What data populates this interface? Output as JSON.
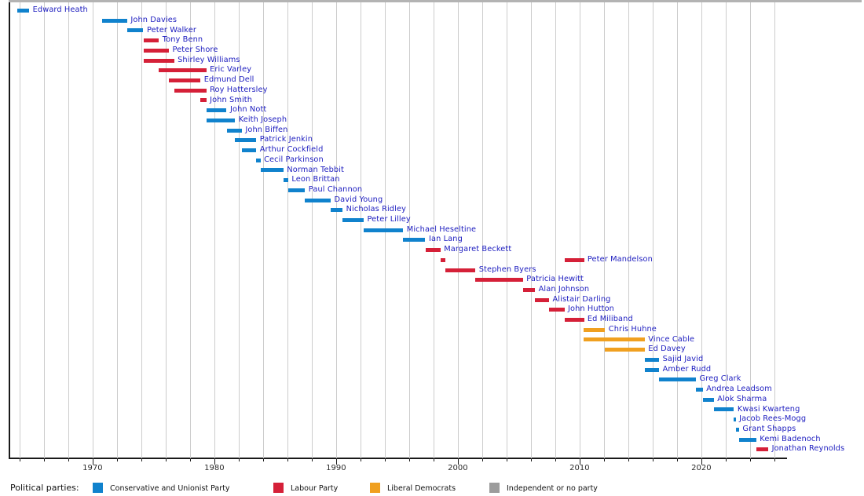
{
  "chart_data": {
    "type": "timeline",
    "title": "",
    "x_axis": {
      "range_start": 1963.2,
      "range_end": 2027.0,
      "minor_tick_step": 2,
      "minor_tick_start": 1964,
      "minor_tick_end": 2026,
      "decade_ticks": [
        1970,
        1980,
        1990,
        2000,
        2010,
        2020
      ],
      "decade_tick_labels": [
        "1970",
        "1980",
        "1990",
        "2000",
        "2010",
        "2020"
      ]
    },
    "colors": {
      "name_label": "#2020c0",
      "axis": "#1a1a1a",
      "gridline": "#cccccc"
    },
    "legend": {
      "title": "Political parties:",
      "items": [
        {
          "id": "con",
          "label": "Conservative and Unionist Party",
          "color": "#1082cd"
        },
        {
          "id": "lab",
          "label": "Labour Party",
          "color": "#d52038"
        },
        {
          "id": "ld",
          "label": "Liberal Democrats",
          "color": "#f0a020"
        },
        {
          "id": "ind",
          "label": "Independent or no party",
          "color": "#9c9c9c"
        }
      ]
    },
    "people": [
      {
        "name": "Edward Heath",
        "party": "con",
        "terms": [
          [
            1963.8,
            1964.79
          ]
        ]
      },
      {
        "name": "John Davies",
        "party": "con",
        "terms": [
          [
            1970.79,
            1972.84
          ]
        ]
      },
      {
        "name": "Peter Walker",
        "party": "con",
        "terms": [
          [
            1972.84,
            1974.17
          ]
        ]
      },
      {
        "name": "Tony Benn",
        "party": "lab",
        "terms": [
          [
            1974.17,
            1975.44
          ]
        ]
      },
      {
        "name": "Peter Shore",
        "party": "lab",
        "terms": [
          [
            1974.17,
            1976.27
          ]
        ]
      },
      {
        "name": "Shirley Williams",
        "party": "lab",
        "terms": [
          [
            1974.17,
            1976.69
          ]
        ]
      },
      {
        "name": "Eric Varley",
        "party": "lab",
        "terms": [
          [
            1975.44,
            1979.34
          ]
        ]
      },
      {
        "name": "Edmund Dell",
        "party": "lab",
        "terms": [
          [
            1976.27,
            1978.86
          ]
        ]
      },
      {
        "name": "Roy Hattersley",
        "party": "lab",
        "terms": [
          [
            1976.69,
            1979.34
          ]
        ]
      },
      {
        "name": "John Smith",
        "party": "lab",
        "terms": [
          [
            1978.86,
            1979.34
          ]
        ]
      },
      {
        "name": "John Nott",
        "party": "con",
        "terms": [
          [
            1979.34,
            1981.01
          ]
        ]
      },
      {
        "name": "Keith Joseph",
        "party": "con",
        "terms": [
          [
            1979.34,
            1981.7
          ]
        ]
      },
      {
        "name": "John Biffen",
        "party": "con",
        "terms": [
          [
            1981.01,
            1982.26
          ]
        ]
      },
      {
        "name": "Patrick Jenkin",
        "party": "con",
        "terms": [
          [
            1981.7,
            1983.44
          ]
        ]
      },
      {
        "name": "Arthur Cockfield",
        "party": "con",
        "terms": [
          [
            1982.26,
            1983.44
          ]
        ]
      },
      {
        "name": "Cecil Parkinson",
        "party": "con",
        "terms": [
          [
            1983.44,
            1983.79
          ]
        ]
      },
      {
        "name": "Norman Tebbit",
        "party": "con",
        "terms": [
          [
            1983.79,
            1985.67
          ]
        ]
      },
      {
        "name": "Leon Brittan",
        "party": "con",
        "terms": [
          [
            1985.67,
            1986.07
          ]
        ]
      },
      {
        "name": "Paul Channon",
        "party": "con",
        "terms": [
          [
            1986.07,
            1987.45
          ]
        ]
      },
      {
        "name": "David Young",
        "party": "con",
        "terms": [
          [
            1987.45,
            1989.56
          ]
        ]
      },
      {
        "name": "Nicholas Ridley",
        "party": "con",
        "terms": [
          [
            1989.56,
            1990.53
          ]
        ]
      },
      {
        "name": "Peter Lilley",
        "party": "con",
        "terms": [
          [
            1990.53,
            1992.27
          ]
        ]
      },
      {
        "name": "Michael Heseltine",
        "party": "con",
        "terms": [
          [
            1992.27,
            1995.51
          ]
        ]
      },
      {
        "name": "Ian Lang",
        "party": "con",
        "terms": [
          [
            1995.51,
            1997.33
          ]
        ]
      },
      {
        "name": "Margaret Beckett",
        "party": "lab",
        "terms": [
          [
            1997.33,
            1998.57
          ]
        ]
      },
      {
        "name": "Peter Mandelson",
        "party": "lab",
        "terms": [
          [
            1998.57,
            1998.98
          ],
          [
            2008.75,
            2010.36
          ]
        ]
      },
      {
        "name": "Stephen Byers",
        "party": "lab",
        "terms": [
          [
            1998.98,
            2001.44
          ]
        ]
      },
      {
        "name": "Patricia Hewitt",
        "party": "lab",
        "terms": [
          [
            2001.44,
            2005.35
          ]
        ]
      },
      {
        "name": "Alan Johnson",
        "party": "lab",
        "terms": [
          [
            2005.35,
            2006.34
          ]
        ]
      },
      {
        "name": "Alistair Darling",
        "party": "lab",
        "terms": [
          [
            2006.34,
            2007.49
          ]
        ]
      },
      {
        "name": "John Hutton",
        "party": "lab",
        "terms": [
          [
            2007.49,
            2008.75
          ]
        ]
      },
      {
        "name": "Ed Miliband",
        "party": "lab",
        "terms": [
          [
            2008.75,
            2010.36
          ]
        ]
      },
      {
        "name": "Chris Huhne",
        "party": "ld",
        "terms": [
          [
            2010.36,
            2012.09
          ]
        ]
      },
      {
        "name": "Vince Cable",
        "party": "ld",
        "terms": [
          [
            2010.36,
            2015.35
          ]
        ]
      },
      {
        "name": "Ed Davey",
        "party": "ld",
        "terms": [
          [
            2012.09,
            2015.35
          ]
        ]
      },
      {
        "name": "Sajid Javid",
        "party": "con",
        "terms": [
          [
            2015.36,
            2016.53
          ]
        ]
      },
      {
        "name": "Amber Rudd",
        "party": "con",
        "terms": [
          [
            2015.36,
            2016.53
          ]
        ]
      },
      {
        "name": "Greg Clark",
        "party": "con",
        "terms": [
          [
            2016.53,
            2019.56
          ]
        ]
      },
      {
        "name": "Andrea Leadsom",
        "party": "con",
        "terms": [
          [
            2019.56,
            2020.12
          ]
        ]
      },
      {
        "name": "Alok Sharma",
        "party": "con",
        "terms": [
          [
            2020.12,
            2021.02
          ]
        ]
      },
      {
        "name": "Kwasi Kwarteng",
        "party": "con",
        "terms": [
          [
            2021.02,
            2022.68
          ]
        ]
      },
      {
        "name": "Jacob Rees-Mogg",
        "party": "con",
        "terms": [
          [
            2022.68,
            2022.82
          ]
        ]
      },
      {
        "name": "Grant Shapps",
        "party": "con",
        "terms": [
          [
            2022.82,
            2023.1
          ]
        ]
      },
      {
        "name": "Kemi Badenoch",
        "party": "con",
        "terms": [
          [
            2023.1,
            2024.51
          ]
        ]
      },
      {
        "name": "Jonathan Reynolds",
        "party": "lab",
        "terms": [
          [
            2024.51,
            2025.5
          ]
        ]
      }
    ]
  }
}
